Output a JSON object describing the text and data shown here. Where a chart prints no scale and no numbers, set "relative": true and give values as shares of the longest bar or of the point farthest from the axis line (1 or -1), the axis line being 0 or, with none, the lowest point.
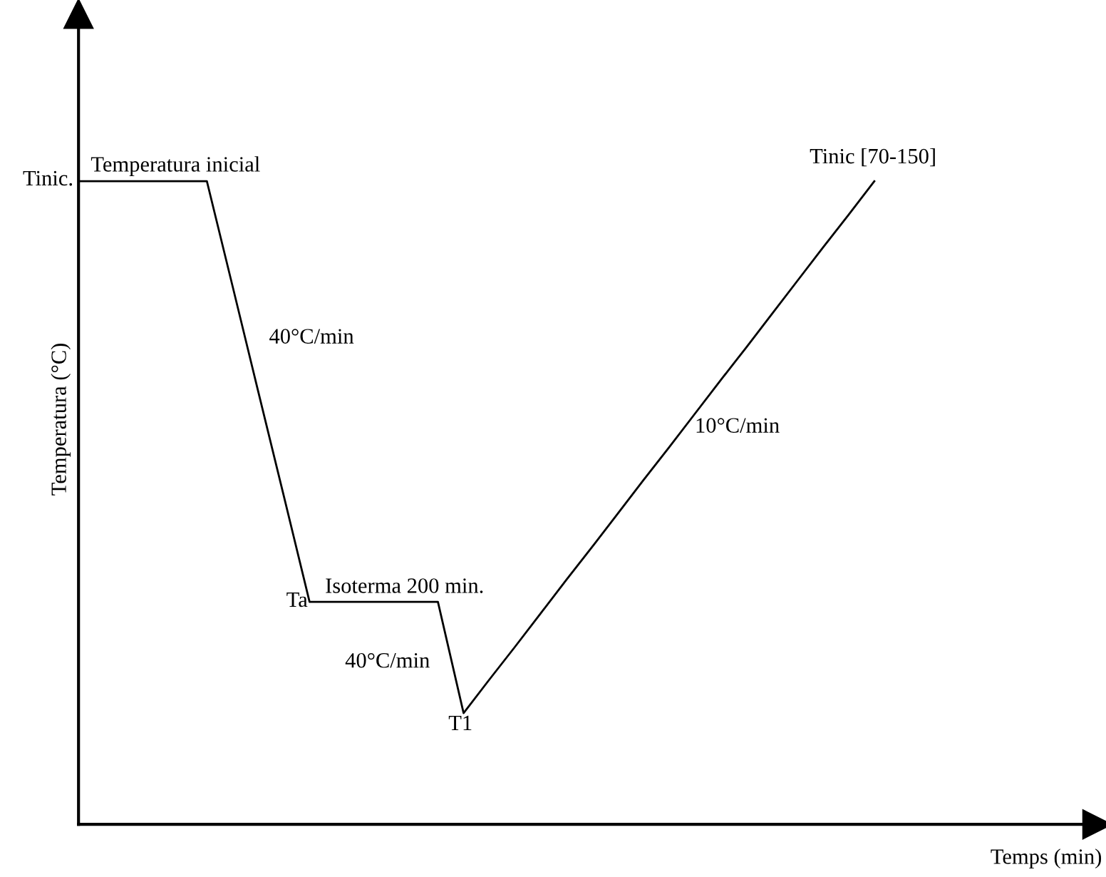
{
  "chart_data": {
    "type": "line",
    "relative": true,
    "xlabel": "Temps (min)",
    "ylabel": "Temperatura (°C)",
    "categories": [
      null,
      null,
      null,
      null,
      null,
      null,
      null,
      null,
      null,
      null,
      null,
      null,
      null,
      null,
      null,
      null,
      null,
      null,
      null,
      null,
      null,
      null,
      null,
      null,
      null,
      null,
      null,
      null,
      null,
      null,
      null,
      null
    ],
    "series": [
      {
        "color": "#000000",
        "values": [
          1,
          1,
          1,
          1,
          1,
          1,
          0.837,
          0.673,
          0.51,
          0.346,
          0.346,
          0.346,
          0.346,
          0.346,
          0.346,
          0.173,
          0.225,
          0.276,
          0.328,
          0.38,
          0.431,
          0.483,
          0.535,
          0.586,
          0.638,
          0.69,
          0.741,
          0.793,
          0.845,
          0.897,
          0.948,
          1
        ]
      }
    ],
    "annotations": [
      "Tinic.",
      "Temperatura inicial",
      "40°C/min",
      "Ta",
      "Isoterma 200 min.",
      "40°C/min",
      "T1",
      "10°C/min",
      "Tinic [70-150]"
    ]
  }
}
